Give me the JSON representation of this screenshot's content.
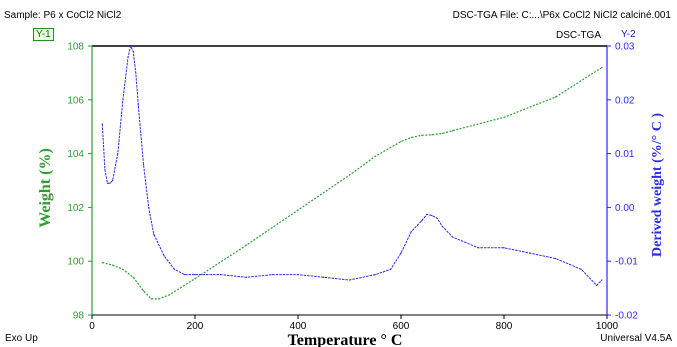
{
  "header": {
    "sample": "Sample: P6 x CoCl2 NiCl2",
    "file": "DSC-TGA File: C:...\\P6x  CoCl2 NiCl2 calciné.001",
    "instrument": "DSC-TGA",
    "y1_tag": "Y-1",
    "y2_tag": "Y-2"
  },
  "footer": {
    "left": "Exo Up",
    "right": "Universal V4.5A"
  },
  "colors": {
    "weight": "#2e9e2e",
    "derivative": "#2a2af0",
    "axis_left": "#2e9e2e",
    "axis_right": "#2a2af0"
  },
  "chart_data": {
    "type": "line",
    "xlabel": "Temperature ° C",
    "ylabel": "Weight (%)",
    "y2label": "Derived weight (%/° C )",
    "xlim": [
      0,
      1000
    ],
    "ylim": [
      98,
      108
    ],
    "y2lim": [
      -0.02,
      0.03
    ],
    "x_ticks": [
      "0",
      "200",
      "400",
      "600",
      "800",
      "1000"
    ],
    "y_ticks": [
      "98",
      "100",
      "102",
      "104",
      "106",
      "108"
    ],
    "y2_ticks": [
      "-0.02",
      "-0.01",
      "0.00",
      "0.01",
      "0.02",
      "0.03"
    ],
    "grid": false,
    "series": [
      {
        "axis": "left",
        "x": [
          20,
          40,
          60,
          80,
          100,
          115,
          130,
          150,
          200,
          300,
          400,
          500,
          550,
          600,
          620,
          640,
          660,
          680,
          700,
          800,
          900,
          990
        ],
        "y": [
          99.95,
          99.85,
          99.7,
          99.4,
          98.9,
          98.6,
          98.6,
          98.75,
          99.35,
          100.6,
          101.9,
          103.2,
          103.9,
          104.45,
          104.6,
          104.68,
          104.7,
          104.75,
          104.85,
          105.35,
          106.1,
          107.2
        ]
      },
      {
        "axis": "right",
        "x": [
          20,
          25,
          30,
          35,
          40,
          50,
          60,
          70,
          75,
          80,
          85,
          90,
          100,
          110,
          120,
          140,
          160,
          180,
          200,
          250,
          300,
          350,
          400,
          450,
          500,
          550,
          580,
          600,
          620,
          640,
          650,
          660,
          670,
          680,
          700,
          750,
          800,
          850,
          900,
          950,
          980,
          990
        ],
        "y": [
          0.0155,
          0.007,
          0.0045,
          0.0045,
          0.005,
          0.01,
          0.02,
          0.028,
          0.03,
          0.029,
          0.025,
          0.019,
          0.008,
          0.0,
          -0.005,
          -0.009,
          -0.0115,
          -0.0125,
          -0.0125,
          -0.0125,
          -0.013,
          -0.0125,
          -0.0125,
          -0.013,
          -0.0135,
          -0.0125,
          -0.0115,
          -0.0085,
          -0.0045,
          -0.0025,
          -0.0013,
          -0.0015,
          -0.002,
          -0.0035,
          -0.0055,
          -0.0075,
          -0.0075,
          -0.0085,
          -0.0095,
          -0.0115,
          -0.0145,
          -0.0135
        ]
      }
    ]
  }
}
